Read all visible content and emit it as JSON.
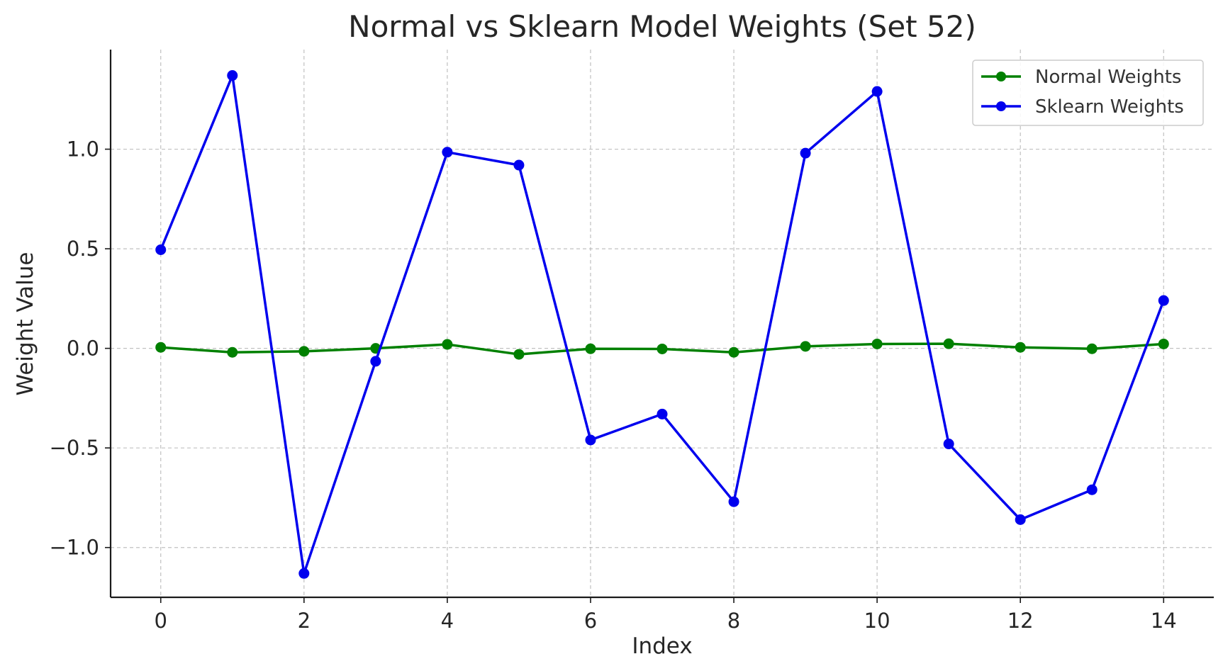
{
  "chart_data": {
    "type": "line",
    "title": "Normal vs Sklearn Model Weights (Set 52)",
    "xlabel": "Index",
    "ylabel": "Weight Value",
    "x": [
      0,
      1,
      2,
      3,
      4,
      5,
      6,
      7,
      8,
      9,
      10,
      11,
      12,
      13,
      14
    ],
    "xlim": [
      -0.7,
      14.7
    ],
    "ylim": [
      -1.25,
      1.5
    ],
    "xticks": [
      0,
      2,
      4,
      6,
      8,
      10,
      12,
      14
    ],
    "yticks": [
      -1.0,
      -0.5,
      0.0,
      0.5,
      1.0
    ],
    "ytick_labels": [
      "−1.0",
      "−0.5",
      "0.0",
      "0.5",
      "1.0"
    ],
    "grid": true,
    "legend_position": "top-right",
    "series": [
      {
        "name": "Normal Weights",
        "color": "#008000",
        "values": [
          0.005,
          -0.02,
          -0.015,
          0.0,
          0.02,
          -0.03,
          -0.002,
          -0.003,
          -0.02,
          0.01,
          0.022,
          0.023,
          0.005,
          -0.002,
          0.022
        ]
      },
      {
        "name": "Sklearn Weights",
        "color": "#0000ee",
        "values": [
          0.495,
          1.37,
          -1.13,
          -0.065,
          0.985,
          0.92,
          -0.46,
          -0.33,
          -0.77,
          0.98,
          1.29,
          -0.48,
          -0.86,
          -0.71,
          0.24
        ]
      }
    ]
  }
}
